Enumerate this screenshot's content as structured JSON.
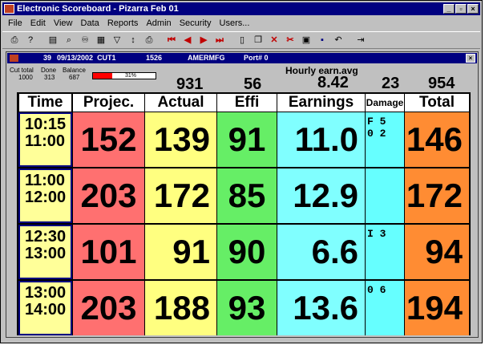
{
  "window": {
    "title": "Electronic Scoreboard - Pizarra Feb 01"
  },
  "menu": [
    "File",
    "Edit",
    "View",
    "Data",
    "Reports",
    "Admin",
    "Security",
    "Users..."
  ],
  "toolbar_icons": [
    "print-icon",
    "help-icon",
    "preview-icon",
    "find-icon",
    "binoculars-icon",
    "grid-icon",
    "filter-icon",
    "sort-icon",
    "printer-icon",
    "first-icon",
    "prev-icon",
    "next-icon",
    "last-icon",
    "new-icon",
    "copy-icon",
    "delete-icon",
    "cut-icon",
    "save-icon",
    "disk-icon",
    "undo-icon",
    "exit-icon"
  ],
  "inner": {
    "line": "39",
    "date": "09/13/2002",
    "cut": "CUT1",
    "code": "1526",
    "customer": "AMERMFG",
    "port": "Port# 0"
  },
  "stats": {
    "cut_total_label": "Cut total",
    "cut_total": "1000",
    "done_label": "Done",
    "done": "313",
    "balance_label": "Balance",
    "balance": "687",
    "balance_pct": "31%",
    "balance_fraction": 0.31,
    "actual_total": "931",
    "effi_total": "56",
    "hourly_label": "Hourly earn.avg",
    "hourly_value": "8.42",
    "damage_total": "23",
    "grand_total": "954"
  },
  "headers": {
    "time": "Time",
    "projec": "Projec.",
    "actual": "Actual",
    "effi": "Effi",
    "earnings": "Earnings",
    "damage": "Damage",
    "total": "Total"
  },
  "rows": [
    {
      "time_from": "10:15",
      "time_to": "11:00",
      "projec": "152",
      "actual": "139",
      "effi": "91",
      "earnings": "11.0",
      "damage_l1": "F 5",
      "damage_l2": "0 2",
      "total": "146"
    },
    {
      "time_from": "11:00",
      "time_to": "12:00",
      "projec": "203",
      "actual": "172",
      "effi": "85",
      "earnings": "12.9",
      "damage_l1": "",
      "damage_l2": "",
      "total": "172"
    },
    {
      "time_from": "12:30",
      "time_to": "13:00",
      "projec": "101",
      "actual": "91",
      "effi": "90",
      "earnings": "6.6",
      "damage_l1": "I 3",
      "damage_l2": "",
      "total": "94"
    },
    {
      "time_from": "13:00",
      "time_to": "14:00",
      "projec": "203",
      "actual": "188",
      "effi": "93",
      "earnings": "13.6",
      "damage_l1": "0 6",
      "damage_l2": "",
      "total": "194"
    }
  ],
  "colors": {
    "time": "#ffff99",
    "projec": "#ff7070",
    "actual": "#ffff80",
    "effi": "#66ee66",
    "earnings": "#80ffff",
    "damage": "#66ffff",
    "total": "#ff8c33"
  }
}
